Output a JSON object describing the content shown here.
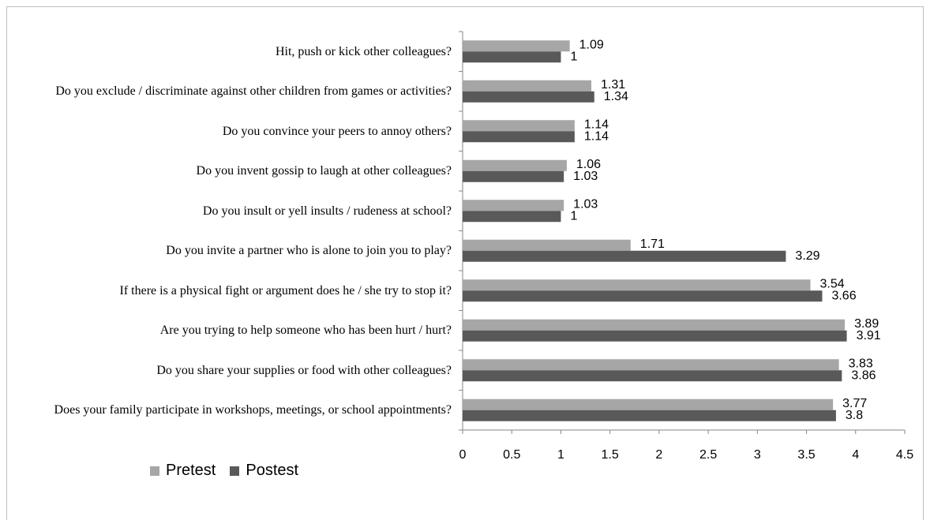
{
  "chart_data": {
    "type": "bar",
    "orientation": "horizontal",
    "categories": [
      "Hit, push or kick other colleagues?",
      "Do you exclude / discriminate against other children from games or activities?",
      "Do you convince your peers to annoy others?",
      "Do you invent gossip to laugh at other colleagues?",
      "Do you insult or yell insults / rudeness at school?",
      "Do you invite a partner who is alone to join you to play?",
      "If there is a physical fight or argument does he / she try to stop it?",
      "Are you trying to help someone who has been hurt / hurt?",
      "Do you share your supplies or food with other colleagues?",
      "Does your family participate in workshops, meetings, or school appointments?"
    ],
    "series": [
      {
        "name": "Pretest",
        "color": "#a6a6a6",
        "values": [
          1.09,
          1.31,
          1.14,
          1.06,
          1.03,
          1.71,
          3.54,
          3.89,
          3.83,
          3.77
        ]
      },
      {
        "name": "Postest",
        "color": "#595959",
        "values": [
          1,
          1.34,
          1.14,
          1.03,
          1,
          3.29,
          3.66,
          3.91,
          3.86,
          3.8
        ]
      }
    ],
    "xlim": [
      0,
      4.5
    ],
    "xticks": [
      0,
      0.5,
      1,
      1.5,
      2,
      2.5,
      3,
      3.5,
      4,
      4.5
    ],
    "legend": "bottom-left"
  }
}
